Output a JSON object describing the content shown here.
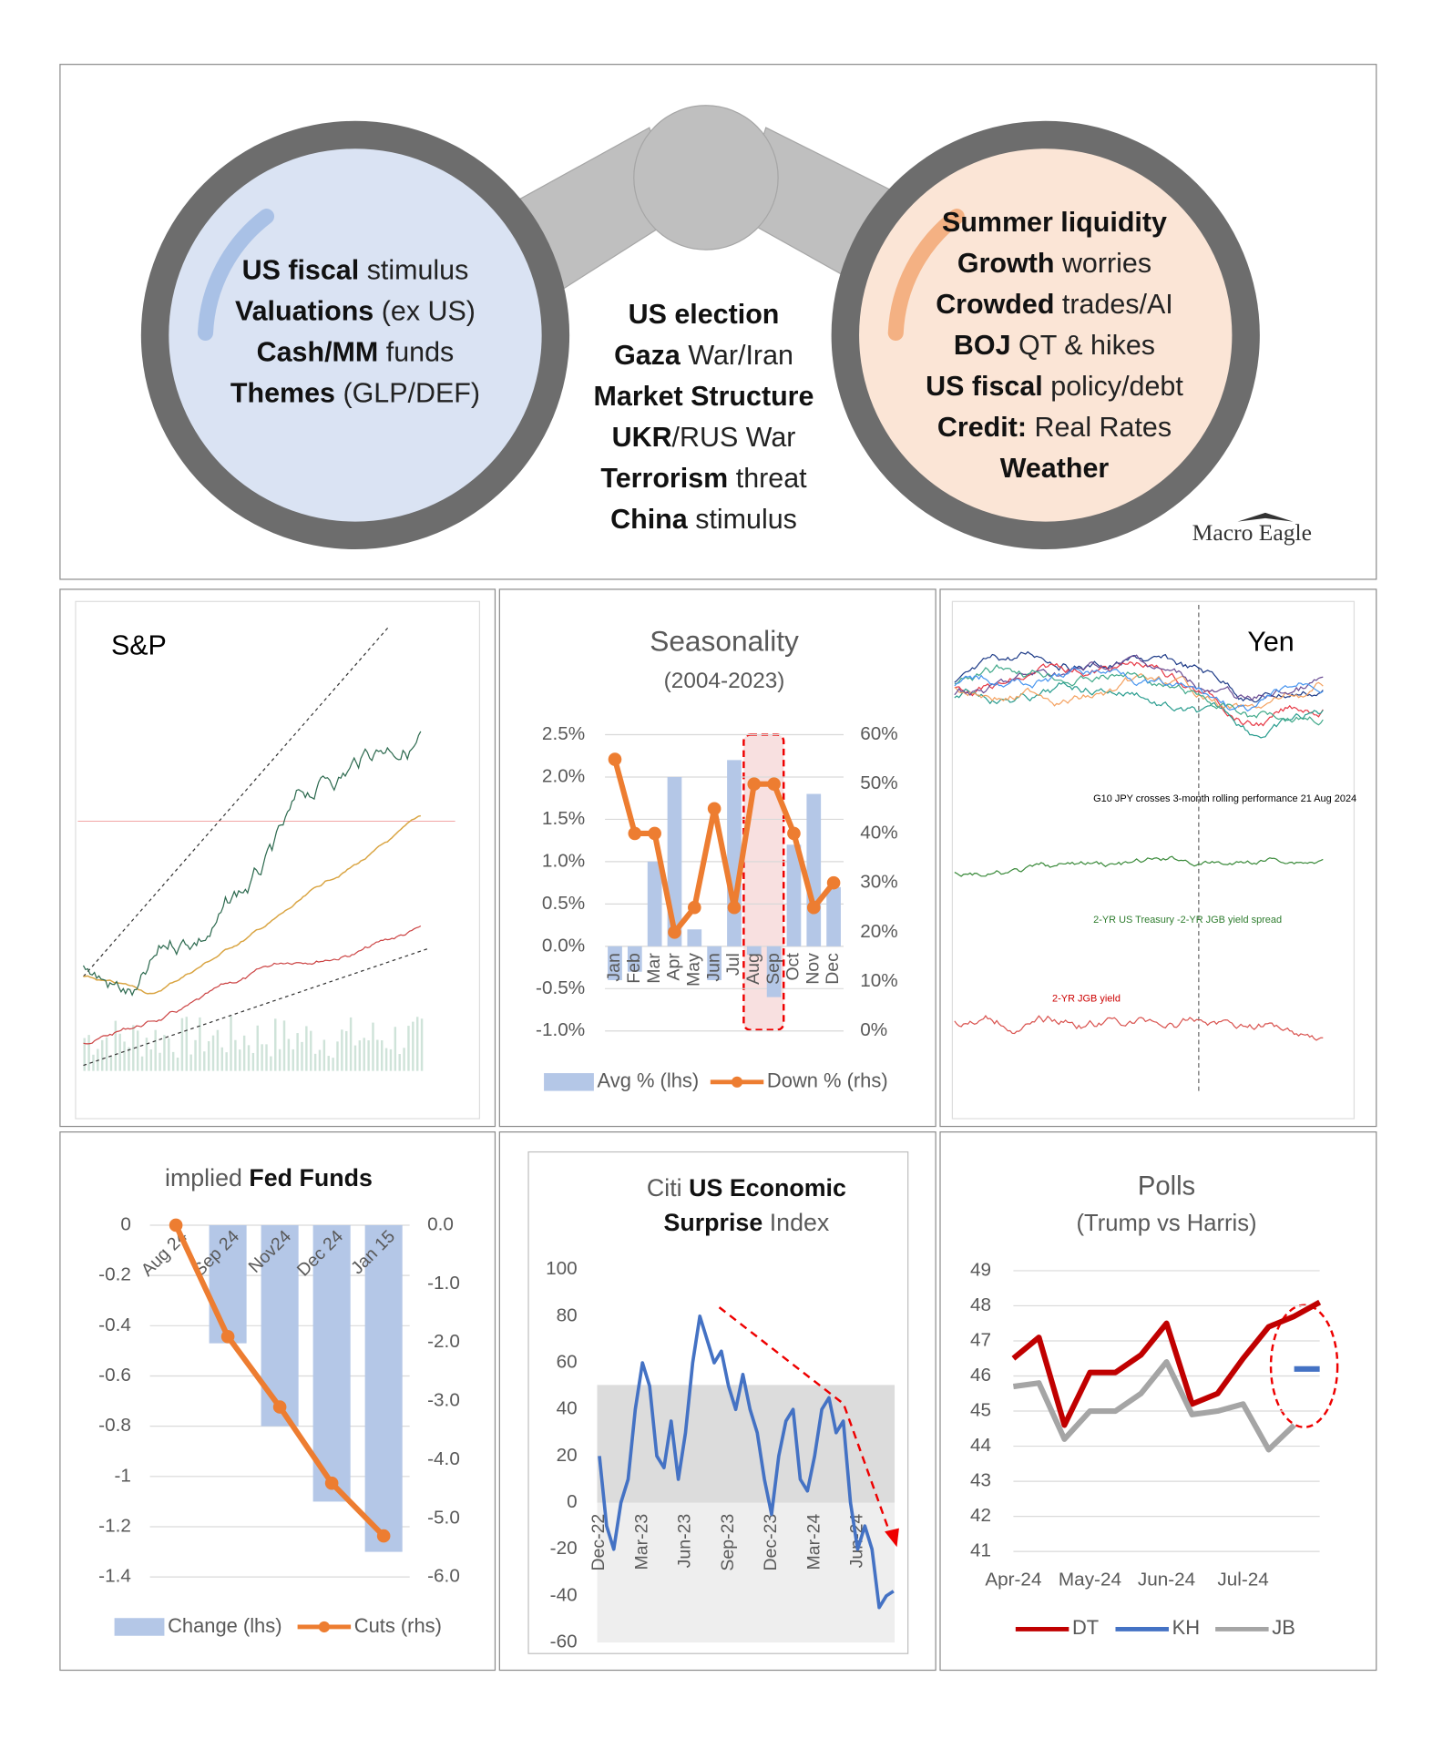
{
  "diagram": {
    "left": [
      [
        {
          "text": "US fiscal",
          "bold": true
        },
        {
          "text": "stimulus"
        }
      ],
      [
        {
          "text": "Valuations",
          "bold": true
        },
        {
          "text": "(ex US)"
        }
      ],
      [
        {
          "text": "Cash/MM",
          "bold": true
        },
        {
          "text": "funds"
        }
      ],
      [
        {
          "text": "Themes",
          "bold": true
        },
        {
          "text": "(GLP/DEF)"
        }
      ]
    ],
    "middle": [
      [
        {
          "text": "US election",
          "bold": true
        }
      ],
      [
        {
          "text": "Gaza",
          "bold": true
        },
        {
          "text": "War/Iran"
        }
      ],
      [
        {
          "text": "Market Structure",
          "bold": true
        }
      ],
      [
        {
          "text": "UKR",
          "bold": true
        },
        {
          "text": "/RUS War"
        }
      ],
      [
        {
          "text": "Terrorism",
          "bold": true
        },
        {
          "text": "threat"
        }
      ],
      [
        {
          "text": "China",
          "bold": true
        },
        {
          "text": "stimulus"
        }
      ]
    ],
    "right": [
      [
        {
          "text": "Summer liquidity",
          "bold": true
        }
      ],
      [
        {
          "text": "Growth",
          "bold": true
        },
        {
          "text": "worries"
        }
      ],
      [
        {
          "text": "Crowded",
          "bold": true
        },
        {
          "text": "trades/AI"
        }
      ],
      [
        {
          "text": "BOJ",
          "bold": true
        },
        {
          "text": "QT & hikes"
        }
      ],
      [
        {
          "text": "US fiscal",
          "bold": true
        },
        {
          "text": "policy/debt"
        }
      ],
      [
        {
          "text": "Credit:",
          "bold": true
        },
        {
          "text": "Real Rates"
        }
      ],
      [
        {
          "text": "Weather",
          "bold": true
        }
      ]
    ],
    "logo": "Macro Eagle"
  },
  "chart_data": [
    {
      "type": "image",
      "title": "S&P"
    },
    {
      "type": "combo",
      "title_lines": [
        [
          {
            "text": "Seasonality"
          }
        ],
        [
          {
            "text": "(2004-2023)"
          }
        ]
      ],
      "categories": [
        "Jan",
        "Feb",
        "Mar",
        "Apr",
        "May",
        "Jun",
        "Jul",
        "Aug",
        "Sep",
        "Oct",
        "Nov",
        "Dec"
      ],
      "series": [
        {
          "name": "Avg % (lhs)",
          "type": "bar",
          "color": "#b4c7e7",
          "values": [
            -0.4,
            -0.3,
            1.0,
            2.0,
            0.2,
            -0.4,
            2.2,
            -0.1,
            -0.6,
            1.2,
            1.8,
            0.7
          ]
        },
        {
          "name": "Down % (rhs)",
          "type": "line",
          "axis": "y2",
          "color": "#ed7d31",
          "values": [
            55,
            40,
            40,
            20,
            25,
            45,
            25,
            50,
            50,
            40,
            25,
            30
          ]
        }
      ],
      "ylim": [
        -1,
        2.5
      ],
      "yticks": [
        {
          "value": -1,
          "label": "-1.0%"
        },
        {
          "value": -0.5,
          "label": "-0.5%"
        },
        {
          "value": 0,
          "label": "0.0%"
        },
        {
          "value": 0.5,
          "label": "0.5%"
        },
        {
          "value": 1,
          "label": "1.0%"
        },
        {
          "value": 1.5,
          "label": "1.5%"
        },
        {
          "value": 2,
          "label": "2.0%"
        },
        {
          "value": 2.5,
          "label": "2.5%"
        }
      ],
      "y2lim": [
        0,
        60
      ],
      "y2ticks": [
        {
          "value": 0,
          "label": "0%"
        },
        {
          "value": 10,
          "label": "10%"
        },
        {
          "value": 20,
          "label": "20%"
        },
        {
          "value": 30,
          "label": "30%"
        },
        {
          "value": 40,
          "label": "40%"
        },
        {
          "value": 50,
          "label": "50%"
        },
        {
          "value": 60,
          "label": "60%"
        }
      ],
      "grid": true
    },
    {
      "type": "image",
      "title": "Yen",
      "annotations": [
        "G10 JPY crosses 3-month rolling performance 21 Aug 2024",
        "2-YR US Treasury -2-YR JGB yield spread",
        "2-YR JGB yield"
      ]
    },
    {
      "type": "combo",
      "title_lines": [
        [
          {
            "text": "implied"
          },
          {
            "text": "Fed Funds",
            "bold": true
          }
        ]
      ],
      "categories": [
        "Aug 24",
        "Sep 24",
        "Nov24",
        "Dec 24",
        "Jan 15"
      ],
      "series": [
        {
          "name": "Change (lhs)",
          "type": "bar",
          "color": "#b4c7e7",
          "values": [
            0,
            -0.47,
            -0.8,
            -1.1,
            -1.3
          ]
        },
        {
          "name": "Cuts (rhs)",
          "type": "line",
          "axis": "y2",
          "color": "#ed7d31",
          "values": [
            0,
            -1.9,
            -3.1,
            -4.4,
            -5.3
          ]
        }
      ],
      "ylim": [
        -1.4,
        0
      ],
      "yticks": [
        0,
        -0.2,
        -0.4,
        -0.6,
        -0.8,
        -1,
        -1.2,
        -1.4
      ],
      "y2lim": [
        -6,
        0
      ],
      "y2ticks": [
        {
          "value": 0,
          "label": "0.0"
        },
        {
          "value": -1,
          "label": "-1.0"
        },
        {
          "value": -2,
          "label": "-2.0"
        },
        {
          "value": -3,
          "label": "-3.0"
        },
        {
          "value": -4,
          "label": "-4.0"
        },
        {
          "value": -5,
          "label": "-5.0"
        },
        {
          "value": -6,
          "label": "-6.0"
        }
      ],
      "grid": true
    },
    {
      "type": "line",
      "title_lines": [
        [
          {
            "text": "Citi"
          },
          {
            "text": "US Economic",
            "bold": true
          }
        ],
        [
          {
            "text": "Surprise",
            "bold": true
          },
          {
            "text": "Index"
          }
        ]
      ],
      "categories": [
        "Dec-22",
        null,
        null,
        null,
        null,
        null,
        "Mar-23",
        null,
        null,
        null,
        null,
        null,
        "Jun-23",
        null,
        null,
        null,
        null,
        null,
        "Sep-23",
        null,
        null,
        null,
        null,
        null,
        "Dec-23",
        null,
        null,
        null,
        null,
        null,
        "Mar-24",
        null,
        null,
        null,
        null,
        null,
        "Jun-24",
        null,
        null,
        null,
        null,
        null
      ],
      "series": [
        {
          "name": "Citi US Economic Surprise Index",
          "color": "#4472c4",
          "values": [
            20,
            -10,
            -20,
            0,
            10,
            40,
            60,
            50,
            20,
            15,
            35,
            10,
            30,
            60,
            80,
            70,
            60,
            65,
            50,
            40,
            55,
            40,
            30,
            10,
            -5,
            20,
            35,
            40,
            10,
            5,
            20,
            40,
            45,
            30,
            35,
            0,
            -20,
            -10,
            -20,
            -45,
            -40,
            -38
          ]
        }
      ],
      "ylim": [
        -60,
        100
      ],
      "yticks": [
        -60,
        -40,
        -20,
        0,
        20,
        40,
        60,
        80,
        100
      ],
      "grid": false
    },
    {
      "type": "line",
      "title_lines": [
        [
          {
            "text": "Polls"
          }
        ],
        [
          {
            "text": "(Trump vs Harris)"
          }
        ]
      ],
      "categories": [
        "Apr-24",
        null,
        null,
        "May-24",
        null,
        null,
        "Jun-24",
        null,
        null,
        "Jul-24",
        null,
        null,
        null
      ],
      "series": [
        {
          "name": "DT",
          "color": "#c00000",
          "values": [
            46.5,
            47.1,
            44.6,
            46.1,
            46.1,
            46.6,
            47.5,
            45.2,
            45.5,
            46.5,
            47.4,
            47.7,
            48.1
          ]
        },
        {
          "name": "KH",
          "color": "#4472c4",
          "values": [
            null,
            null,
            null,
            null,
            null,
            null,
            null,
            null,
            null,
            null,
            null,
            46.2,
            46.2
          ]
        },
        {
          "name": "JB",
          "color": "#a5a5a5",
          "values": [
            45.7,
            45.8,
            44.2,
            45.0,
            45.0,
            45.5,
            46.4,
            44.9,
            45.0,
            45.2,
            43.9,
            44.6,
            null
          ]
        }
      ],
      "ylim": [
        41,
        49
      ],
      "yticks": [
        41,
        42,
        43,
        44,
        45,
        46,
        47,
        48,
        49
      ],
      "grid": true
    }
  ]
}
